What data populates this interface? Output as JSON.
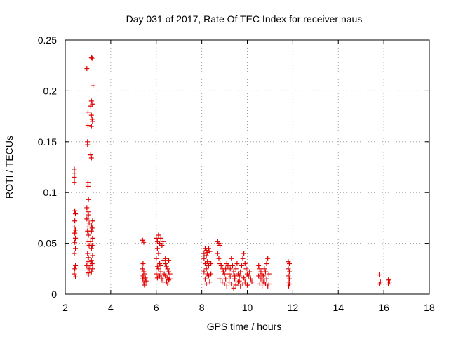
{
  "chart_data": {
    "type": "scatter",
    "title": "Day 031 of 2017, Rate Of TEC Index for receiver naus",
    "xlabel": "GPS time / hours",
    "ylabel": "ROTI / TECUs",
    "xlim": [
      2,
      18
    ],
    "ylim": [
      0,
      0.25
    ],
    "xticks": [
      2,
      4,
      6,
      8,
      10,
      12,
      14,
      16,
      18
    ],
    "yticks": [
      0,
      0.05,
      0.1,
      0.15,
      0.2,
      0.25
    ],
    "ytick_labels": [
      "0",
      "0.05",
      "0.1",
      "0.15",
      "0.2",
      "0.25"
    ],
    "grid": true,
    "marker": "+",
    "color": "#e00000",
    "series": [
      {
        "name": "ROTI",
        "points": [
          [
            2.4,
            0.123
          ],
          [
            2.4,
            0.119
          ],
          [
            2.4,
            0.115
          ],
          [
            2.4,
            0.11
          ],
          [
            2.42,
            0.082
          ],
          [
            2.45,
            0.079
          ],
          [
            2.42,
            0.072
          ],
          [
            2.4,
            0.066
          ],
          [
            2.45,
            0.063
          ],
          [
            2.42,
            0.06
          ],
          [
            2.45,
            0.055
          ],
          [
            2.42,
            0.051
          ],
          [
            2.45,
            0.045
          ],
          [
            2.4,
            0.04
          ],
          [
            2.45,
            0.028
          ],
          [
            2.42,
            0.025
          ],
          [
            2.4,
            0.02
          ],
          [
            2.45,
            0.017
          ],
          [
            2.95,
            0.222
          ],
          [
            3.0,
            0.179
          ],
          [
            3.0,
            0.166
          ],
          [
            2.98,
            0.15
          ],
          [
            2.98,
            0.147
          ],
          [
            3.0,
            0.11
          ],
          [
            3.0,
            0.106
          ],
          [
            3.02,
            0.093
          ],
          [
            2.95,
            0.085
          ],
          [
            3.0,
            0.081
          ],
          [
            3.02,
            0.078
          ],
          [
            2.95,
            0.074
          ],
          [
            3.05,
            0.07
          ],
          [
            3.0,
            0.066
          ],
          [
            2.98,
            0.062
          ],
          [
            3.02,
            0.058
          ],
          [
            3.0,
            0.052
          ],
          [
            3.05,
            0.048
          ],
          [
            2.98,
            0.04
          ],
          [
            3.02,
            0.036
          ],
          [
            3.0,
            0.032
          ],
          [
            2.95,
            0.028
          ],
          [
            3.05,
            0.025
          ],
          [
            3.0,
            0.021
          ],
          [
            3.02,
            0.019
          ],
          [
            3.15,
            0.233
          ],
          [
            3.18,
            0.232
          ],
          [
            3.22,
            0.205
          ],
          [
            3.15,
            0.19
          ],
          [
            3.2,
            0.187
          ],
          [
            3.12,
            0.185
          ],
          [
            3.15,
            0.176
          ],
          [
            3.18,
            0.172
          ],
          [
            3.2,
            0.17
          ],
          [
            3.15,
            0.165
          ],
          [
            3.12,
            0.137
          ],
          [
            3.15,
            0.134
          ],
          [
            3.2,
            0.072
          ],
          [
            3.15,
            0.068
          ],
          [
            3.18,
            0.065
          ],
          [
            3.15,
            0.062
          ],
          [
            3.2,
            0.055
          ],
          [
            3.12,
            0.052
          ],
          [
            3.18,
            0.048
          ],
          [
            3.15,
            0.045
          ],
          [
            3.2,
            0.038
          ],
          [
            3.15,
            0.033
          ],
          [
            3.18,
            0.03
          ],
          [
            3.12,
            0.028
          ],
          [
            3.2,
            0.025
          ],
          [
            3.15,
            0.022
          ],
          [
            5.4,
            0.053
          ],
          [
            5.45,
            0.051
          ],
          [
            5.42,
            0.03
          ],
          [
            5.4,
            0.025
          ],
          [
            5.45,
            0.022
          ],
          [
            5.42,
            0.018
          ],
          [
            5.4,
            0.015
          ],
          [
            5.45,
            0.012
          ],
          [
            5.5,
            0.02
          ],
          [
            5.52,
            0.016
          ],
          [
            5.48,
            0.009
          ],
          [
            5.55,
            0.013
          ],
          [
            6.0,
            0.055
          ],
          [
            6.05,
            0.052
          ],
          [
            6.1,
            0.058
          ],
          [
            6.15,
            0.05
          ],
          [
            6.2,
            0.055
          ],
          [
            6.25,
            0.048
          ],
          [
            6.3,
            0.052
          ],
          [
            6.05,
            0.045
          ],
          [
            6.1,
            0.04
          ],
          [
            6.0,
            0.035
          ],
          [
            6.15,
            0.03
          ],
          [
            6.05,
            0.027
          ],
          [
            6.1,
            0.025
          ],
          [
            6.2,
            0.022
          ],
          [
            6.0,
            0.02
          ],
          [
            6.15,
            0.018
          ],
          [
            6.25,
            0.015
          ],
          [
            6.3,
            0.012
          ],
          [
            6.05,
            0.016
          ],
          [
            6.2,
            0.028
          ],
          [
            6.3,
            0.033
          ],
          [
            6.35,
            0.02
          ],
          [
            6.4,
            0.03
          ],
          [
            6.45,
            0.027
          ],
          [
            6.5,
            0.025
          ],
          [
            6.55,
            0.022
          ],
          [
            6.6,
            0.02
          ],
          [
            6.4,
            0.018
          ],
          [
            6.5,
            0.016
          ],
          [
            6.55,
            0.014
          ],
          [
            6.45,
            0.012
          ],
          [
            6.6,
            0.015
          ],
          [
            6.5,
            0.01
          ],
          [
            6.55,
            0.033
          ],
          [
            6.4,
            0.035
          ],
          [
            8.1,
            0.04
          ],
          [
            8.15,
            0.045
          ],
          [
            8.2,
            0.043
          ],
          [
            8.25,
            0.041
          ],
          [
            8.3,
            0.045
          ],
          [
            8.35,
            0.042
          ],
          [
            8.2,
            0.038
          ],
          [
            8.1,
            0.035
          ],
          [
            8.25,
            0.032
          ],
          [
            8.15,
            0.03
          ],
          [
            8.3,
            0.028
          ],
          [
            8.2,
            0.025
          ],
          [
            8.1,
            0.022
          ],
          [
            8.25,
            0.02
          ],
          [
            8.3,
            0.018
          ],
          [
            8.15,
            0.015
          ],
          [
            8.35,
            0.012
          ],
          [
            8.2,
            0.01
          ],
          [
            8.4,
            0.02
          ],
          [
            8.4,
            0.03
          ],
          [
            8.7,
            0.052
          ],
          [
            8.75,
            0.05
          ],
          [
            8.8,
            0.048
          ],
          [
            8.7,
            0.04
          ],
          [
            8.75,
            0.035
          ],
          [
            8.8,
            0.03
          ],
          [
            8.85,
            0.028
          ],
          [
            8.9,
            0.025
          ],
          [
            8.95,
            0.022
          ],
          [
            9.0,
            0.02
          ],
          [
            9.05,
            0.025
          ],
          [
            9.1,
            0.03
          ],
          [
            9.15,
            0.028
          ],
          [
            9.2,
            0.02
          ],
          [
            9.25,
            0.025
          ],
          [
            9.3,
            0.035
          ],
          [
            9.35,
            0.028
          ],
          [
            9.4,
            0.022
          ],
          [
            9.45,
            0.018
          ],
          [
            9.5,
            0.025
          ],
          [
            9.55,
            0.03
          ],
          [
            9.6,
            0.02
          ],
          [
            9.65,
            0.018
          ],
          [
            9.7,
            0.022
          ],
          [
            9.75,
            0.028
          ],
          [
            9.8,
            0.035
          ],
          [
            9.85,
            0.04
          ],
          [
            9.9,
            0.03
          ],
          [
            9.95,
            0.025
          ],
          [
            10.0,
            0.02
          ],
          [
            10.05,
            0.018
          ],
          [
            10.1,
            0.022
          ],
          [
            10.15,
            0.015
          ],
          [
            10.2,
            0.012
          ],
          [
            8.8,
            0.015
          ],
          [
            8.9,
            0.012
          ],
          [
            9.0,
            0.01
          ],
          [
            9.1,
            0.008
          ],
          [
            9.2,
            0.012
          ],
          [
            9.3,
            0.01
          ],
          [
            9.4,
            0.006
          ],
          [
            9.5,
            0.009
          ],
          [
            9.6,
            0.012
          ],
          [
            9.7,
            0.008
          ],
          [
            9.8,
            0.01
          ],
          [
            9.9,
            0.012
          ],
          [
            10.0,
            0.009
          ],
          [
            9.05,
            0.015
          ],
          [
            9.25,
            0.017
          ],
          [
            9.45,
            0.015
          ],
          [
            9.65,
            0.013
          ],
          [
            9.85,
            0.016
          ],
          [
            10.5,
            0.028
          ],
          [
            10.55,
            0.025
          ],
          [
            10.6,
            0.022
          ],
          [
            10.65,
            0.02
          ],
          [
            10.7,
            0.018
          ],
          [
            10.75,
            0.025
          ],
          [
            10.8,
            0.022
          ],
          [
            10.85,
            0.03
          ],
          [
            10.9,
            0.035
          ],
          [
            10.95,
            0.02
          ],
          [
            10.6,
            0.015
          ],
          [
            10.7,
            0.012
          ],
          [
            10.8,
            0.01
          ],
          [
            10.9,
            0.008
          ],
          [
            10.55,
            0.01
          ],
          [
            10.65,
            0.008
          ],
          [
            10.75,
            0.012
          ],
          [
            10.85,
            0.015
          ],
          [
            10.95,
            0.01
          ],
          [
            10.5,
            0.018
          ],
          [
            11.8,
            0.032
          ],
          [
            11.85,
            0.03
          ],
          [
            11.8,
            0.025
          ],
          [
            11.85,
            0.022
          ],
          [
            11.8,
            0.018
          ],
          [
            11.85,
            0.015
          ],
          [
            11.8,
            0.012
          ],
          [
            11.85,
            0.01
          ],
          [
            11.82,
            0.008
          ],
          [
            15.8,
            0.019
          ],
          [
            15.85,
            0.012
          ],
          [
            15.8,
            0.01
          ],
          [
            16.2,
            0.014
          ],
          [
            16.25,
            0.012
          ],
          [
            16.2,
            0.01
          ]
        ]
      }
    ]
  }
}
